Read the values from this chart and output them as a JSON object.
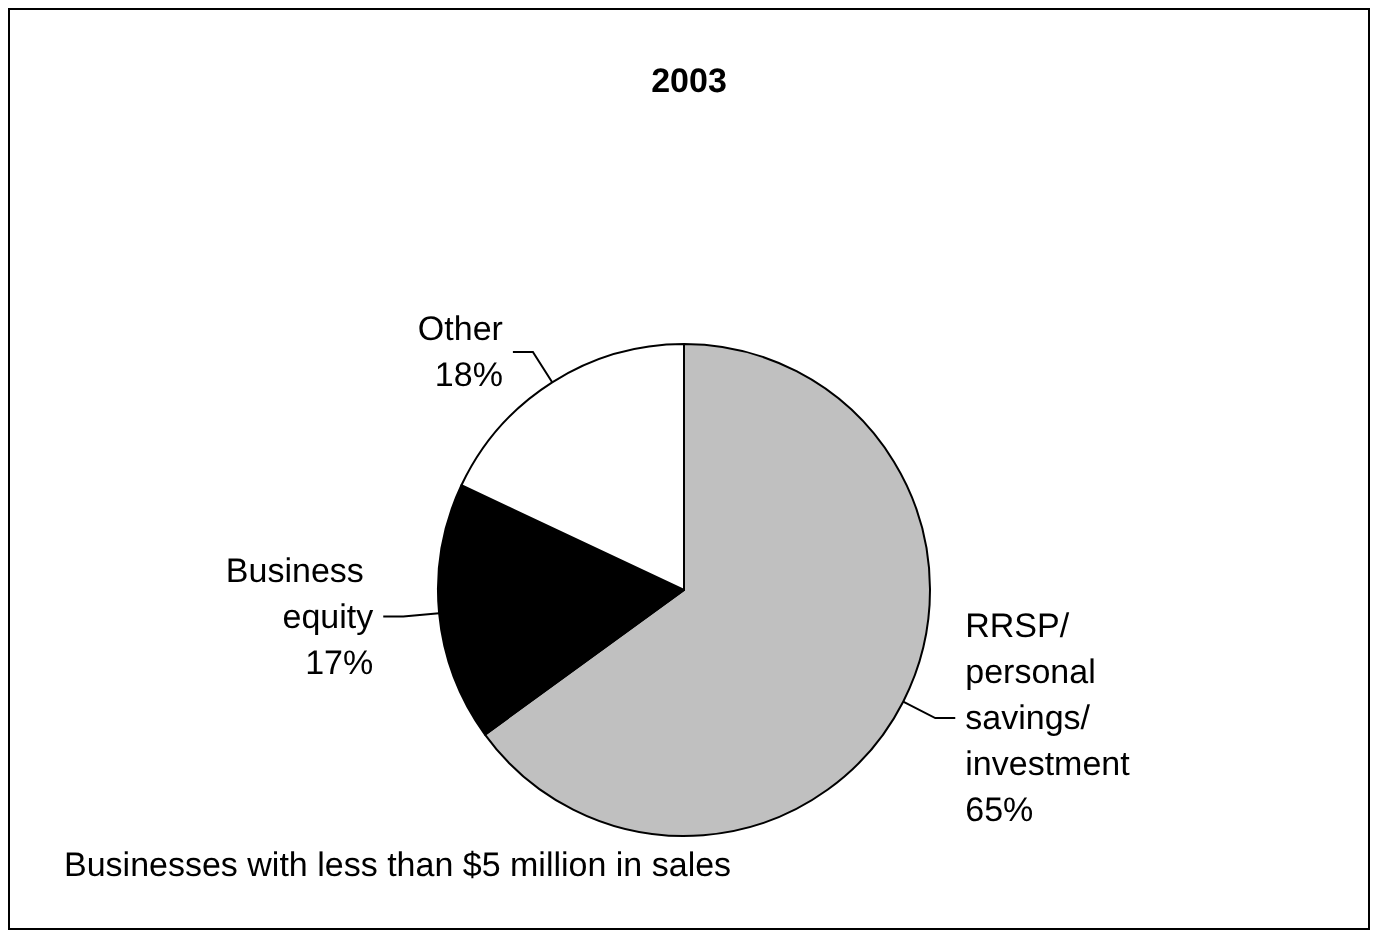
{
  "chart_data": {
    "type": "pie",
    "title": "2003",
    "categories": [
      "RRSP/ personal savings/ investment",
      "Business equity",
      "Other"
    ],
    "values": [
      65,
      17,
      18
    ],
    "colors": [
      "#c0c0c0",
      "#000000",
      "#ffffff"
    ],
    "value_labels": [
      "65%",
      "17%",
      "18%"
    ],
    "annotations": [
      "Businesses with less than $5 million in sales"
    ],
    "legend": false
  }
}
